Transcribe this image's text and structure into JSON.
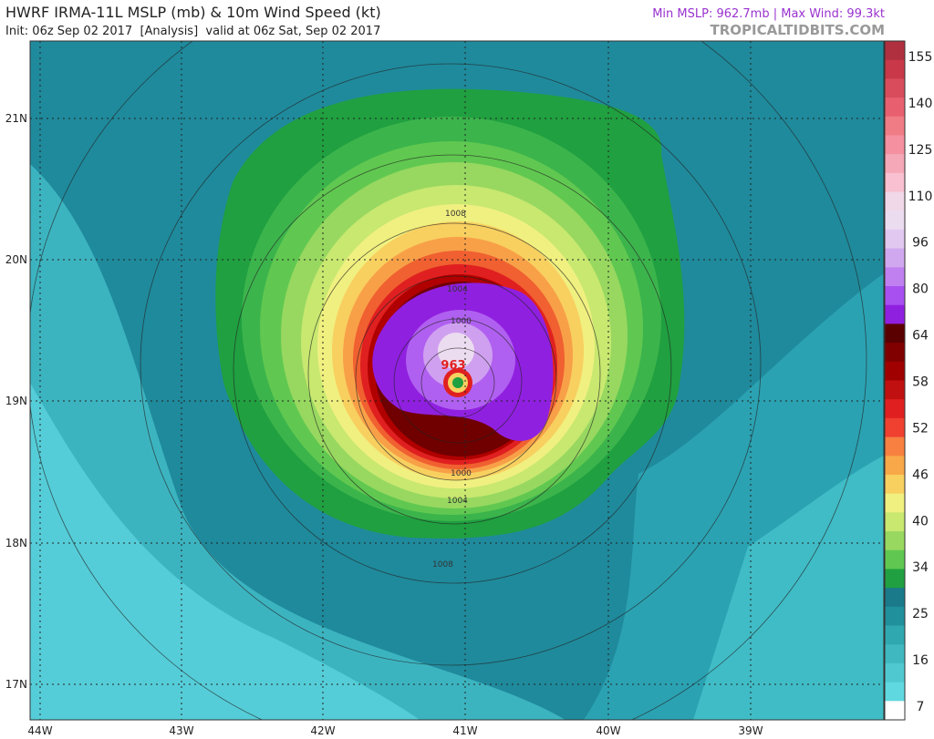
{
  "header": {
    "title": "HWRF IRMA-11L MSLP (mb) & 10m Wind Speed (kt)",
    "subtitle": "Init: 06z Sep 02 2017  [Analysis]  valid at 06z Sat, Sep 02 2017",
    "stats": "Min MSLP: 962.7mb | Max Wind: 99.3kt",
    "source": "TROPICALTIDBITS.COM"
  },
  "map": {
    "lat_labels": [
      "21N",
      "20N",
      "19N",
      "18N",
      "17N"
    ],
    "lon_labels": [
      "44W",
      "43W",
      "42W",
      "41W",
      "40W",
      "39W"
    ],
    "contour_labels": [
      "1008",
      "1004",
      "1000",
      "1000",
      "1004",
      "1008"
    ],
    "center_label": "963"
  },
  "colorbar": {
    "labels": [
      155,
      140,
      125,
      110,
      96,
      80,
      64,
      58,
      52,
      46,
      40,
      34,
      25,
      16,
      7
    ]
  }
}
